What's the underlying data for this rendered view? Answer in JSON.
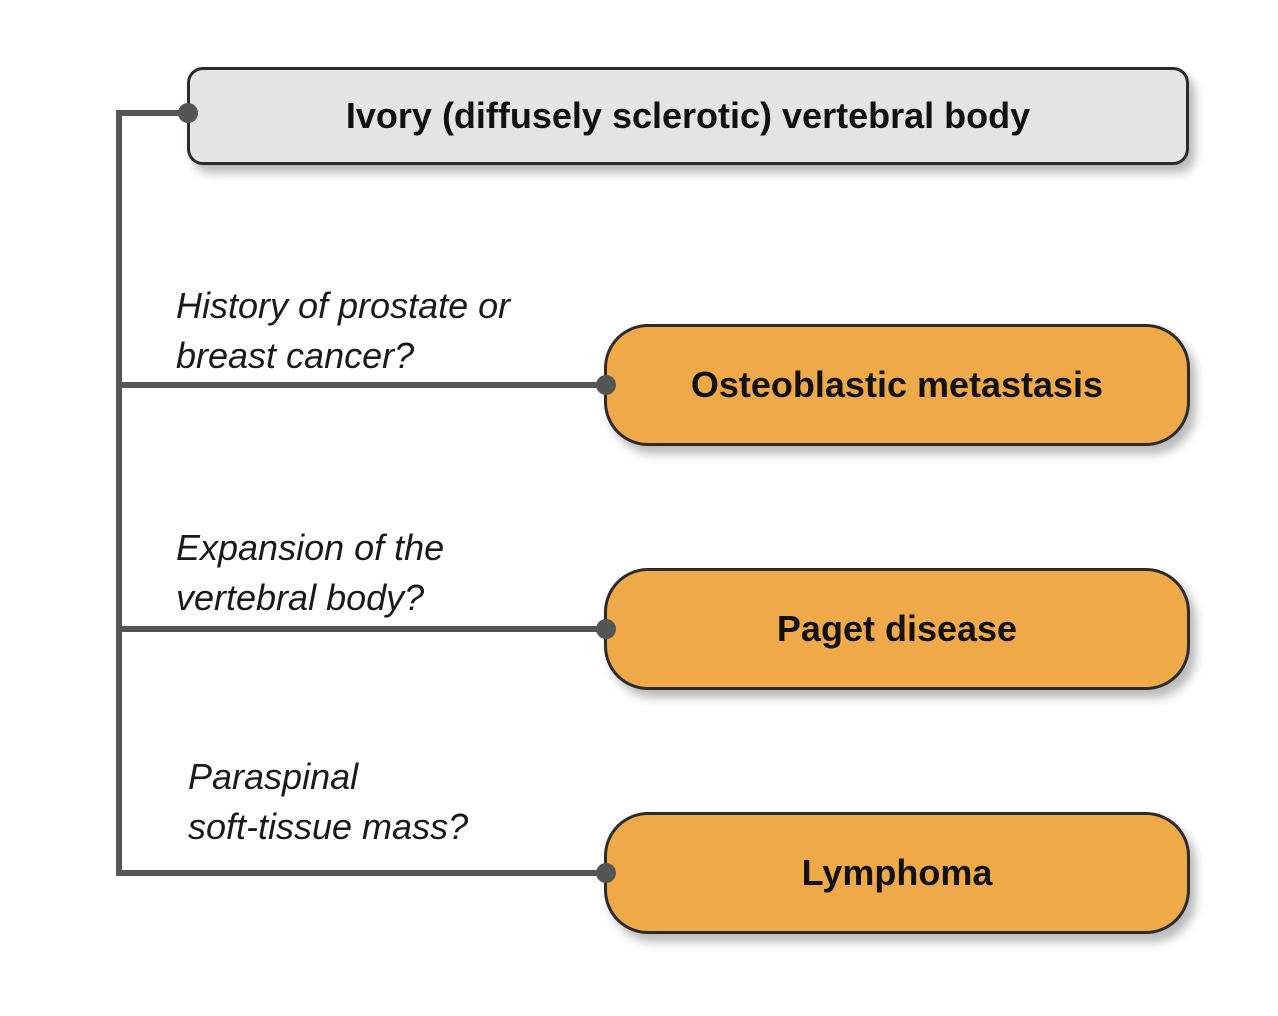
{
  "root": {
    "label": "Ivory (diffusely sclerotic) vertebral body"
  },
  "branches": [
    {
      "question_lines": [
        "History of prostate or",
        "breast cancer?"
      ],
      "outcome": "Osteoblastic metastasis"
    },
    {
      "question_lines": [
        "Expansion of the",
        "vertebral body?"
      ],
      "outcome": "Paget disease"
    },
    {
      "question_lines": [
        "Paraspinal",
        "soft-tissue mass?"
      ],
      "outcome": "Lymphoma"
    }
  ],
  "colors": {
    "root_fill": "#e4e4e4",
    "outcome_fill": "#f0a948",
    "connector": "#555555",
    "border": "#2b2b2b"
  }
}
